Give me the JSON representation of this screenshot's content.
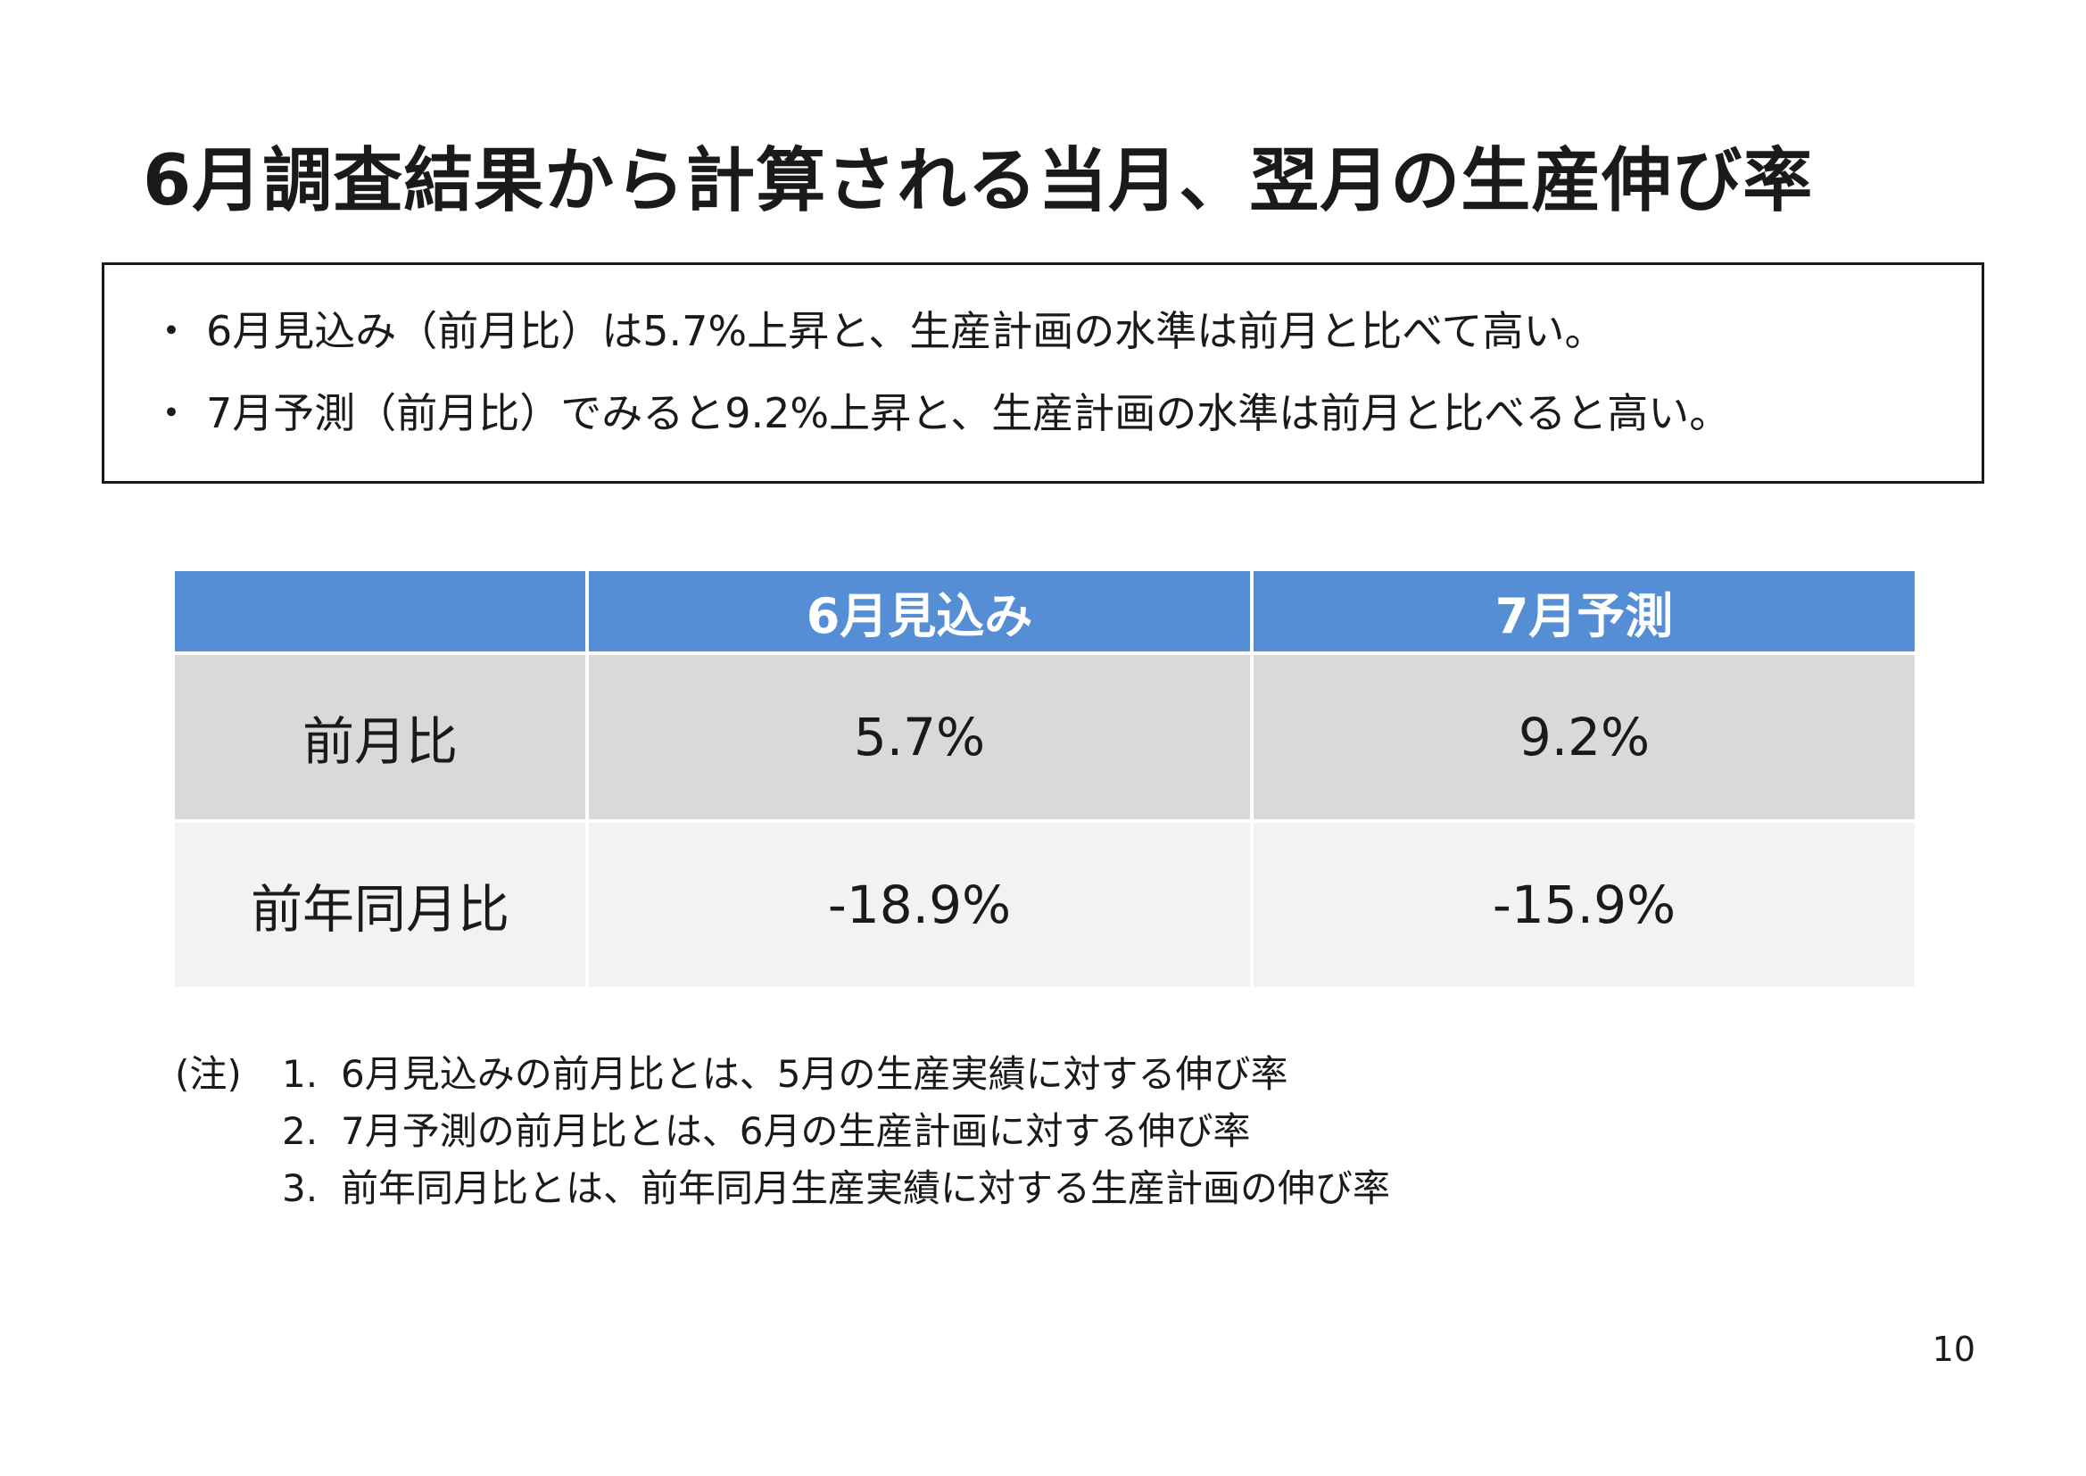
{
  "title": "6月調査結果から計算される当月、翌月の生産伸び率",
  "summary": {
    "bullet_symbol": "・",
    "items": [
      "6月見込み（前月比）は5.7%上昇と、生産計画の水準は前月と比べて高い。",
      "7月予測（前月比）でみると9.2%上昇と、生産計画の水準は前月と比べると高い。"
    ]
  },
  "table": {
    "header": [
      "",
      "6月見込み",
      "7月予測"
    ],
    "rows": [
      {
        "label": "前月比",
        "june": "5.7%",
        "july": "9.2%"
      },
      {
        "label": "前年同月比",
        "june": "-18.9%",
        "july": "-15.9%"
      }
    ],
    "colors": {
      "header_bg": "#558ed5",
      "row_a_bg": "#d9d9d9",
      "row_b_bg": "#f2f2f2"
    }
  },
  "notes": {
    "prefix": "(注)",
    "items": [
      {
        "num": "1.",
        "text": "6月見込みの前月比とは、5月の生産実績に対する伸び率"
      },
      {
        "num": "2.",
        "text": "7月予測の前月比とは、6月の生産計画に対する伸び率"
      },
      {
        "num": "3.",
        "text": "前年同月比とは、前年同月生産実績に対する生産計画の伸び率"
      }
    ]
  },
  "page_number": "10"
}
